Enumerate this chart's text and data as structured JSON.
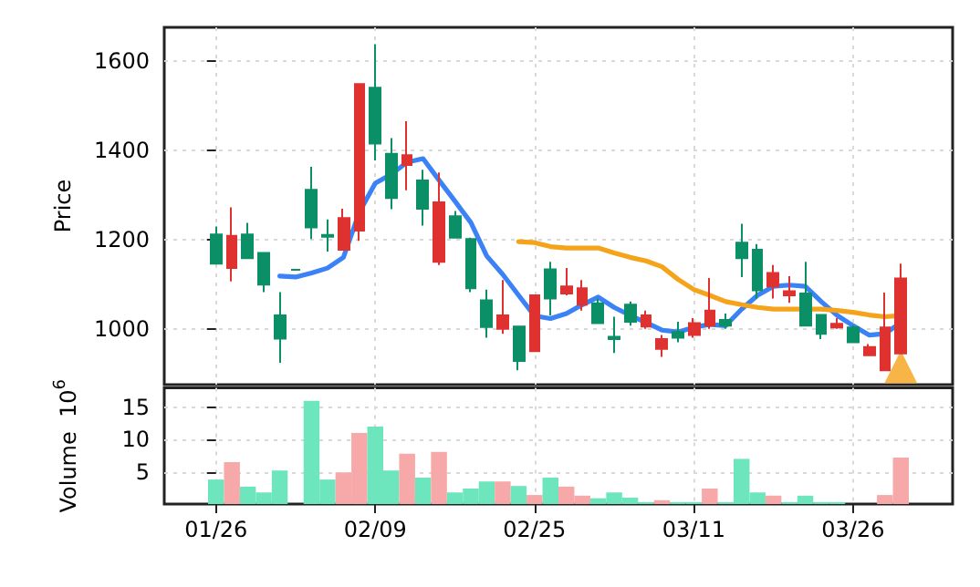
{
  "chart_data": [
    {
      "type": "candlestick",
      "ylabel": "Price",
      "ohlc": [
        [
          1146,
          1229,
          1146,
          1211
        ],
        [
          1208,
          1272,
          1106,
          1136
        ],
        [
          1158,
          1237,
          1158,
          1211
        ],
        [
          1099,
          1170,
          1082,
          1170
        ],
        [
          978,
          1082,
          924,
          1030
        ],
        [
          1132,
          1132,
          1132,
          1132
        ],
        [
          1227,
          1363,
          1201,
          1311
        ],
        [
          1206,
          1245,
          1173,
          1210
        ],
        [
          1248,
          1269,
          1177,
          1177
        ],
        [
          1548,
          1548,
          1197,
          1220
        ],
        [
          1415,
          1637,
          1377,
          1540
        ],
        [
          1293,
          1427,
          1268,
          1392
        ],
        [
          1389,
          1465,
          1310,
          1367
        ],
        [
          1269,
          1356,
          1231,
          1332
        ],
        [
          1283,
          1350,
          1143,
          1150
        ],
        [
          1204,
          1264,
          1204,
          1252
        ],
        [
          1091,
          1204,
          1082,
          1201
        ],
        [
          1004,
          1088,
          980,
          1064
        ],
        [
          1030,
          1109,
          989,
          1000
        ],
        [
          928,
          1007,
          907,
          1005
        ],
        [
          1075,
          1075,
          950,
          950
        ],
        [
          1068,
          1150,
          1030,
          1133
        ],
        [
          1095,
          1136,
          1075,
          1079
        ],
        [
          1091,
          1109,
          1041,
          1054
        ],
        [
          1013,
          1068,
          1013,
          1057
        ],
        [
          977,
          1027,
          946,
          982
        ],
        [
          1016,
          1061,
          1007,
          1054
        ],
        [
          1030,
          1041,
          1000,
          1005
        ],
        [
          977,
          986,
          937,
          955
        ],
        [
          980,
          1016,
          970,
          993
        ],
        [
          1013,
          1024,
          980,
          986
        ],
        [
          1041,
          1114,
          1000,
          1007
        ],
        [
          1007,
          1034,
          1000,
          1020
        ],
        [
          1158,
          1235,
          1116,
          1193
        ],
        [
          1086,
          1190,
          1068,
          1177
        ],
        [
          1125,
          1143,
          1068,
          1095
        ],
        [
          1084,
          1118,
          1058,
          1075
        ],
        [
          1007,
          1150,
          1007,
          1079
        ],
        [
          989,
          1031,
          977,
          1031
        ],
        [
          1011,
          1024,
          1000,
          1003
        ],
        [
          970,
          1007,
          969,
          1003
        ],
        [
          959,
          966,
          939,
          941
        ],
        [
          1003,
          1081,
          907,
          907
        ],
        [
          1113,
          1146,
          945,
          945
        ]
      ],
      "colors": [
        "#0b8f66",
        "#e03131",
        "#0b8f66",
        "#0b8f66",
        "#0b8f66",
        "#0b8f66",
        "#0b8f66",
        "#0b8f66",
        "#e03131",
        "#e03131",
        "#0b8f66",
        "#0b8f66",
        "#e03131",
        "#0b8f66",
        "#e03131",
        "#0b8f66",
        "#0b8f66",
        "#0b8f66",
        "#e03131",
        "#0b8f66",
        "#e03131",
        "#0b8f66",
        "#e03131",
        "#e03131",
        "#0b8f66",
        "#0b8f66",
        "#0b8f66",
        "#e03131",
        "#e03131",
        "#0b8f66",
        "#e03131",
        "#e03131",
        "#0b8f66",
        "#0b8f66",
        "#0b8f66",
        "#e03131",
        "#e03131",
        "#0b8f66",
        "#0b8f66",
        "#e03131",
        "#0b8f66",
        "#e03131",
        "#e03131",
        "#e03131"
      ],
      "series": [
        {
          "type": "line",
          "color": "#3b82f6",
          "values": [
            null,
            null,
            null,
            null,
            1118,
            1116,
            1125,
            1136,
            1160,
            1261,
            1326,
            1346,
            1373,
            1381,
            1333,
            1286,
            1238,
            1163,
            1122,
            1075,
            1029,
            1023,
            1034,
            1054,
            1071,
            1048,
            1030,
            1014,
            997,
            993,
            1003,
            1010,
            1007,
            1044,
            1075,
            1095,
            1098,
            1095,
            1061,
            1030,
            1007,
            986,
            989,
            1014
          ]
        },
        {
          "type": "line",
          "color": "#f5a31a",
          "values": [
            null,
            null,
            null,
            null,
            null,
            null,
            null,
            null,
            null,
            null,
            null,
            null,
            null,
            null,
            null,
            null,
            null,
            null,
            null,
            1195,
            1193,
            1184,
            1181,
            1181,
            1181,
            1170,
            1160,
            1152,
            1139,
            1111,
            1088,
            1075,
            1061,
            1054,
            1048,
            1044,
            1044,
            1044,
            1044,
            1041,
            1037,
            1031,
            1027,
            1030
          ]
        },
        {
          "type": "scatter",
          "marker": "triangle",
          "color": "#f5a31a",
          "values": [
            null,
            null,
            null,
            null,
            null,
            null,
            null,
            null,
            null,
            null,
            null,
            null,
            null,
            null,
            null,
            null,
            null,
            null,
            null,
            null,
            null,
            null,
            null,
            null,
            null,
            null,
            null,
            null,
            null,
            null,
            null,
            null,
            null,
            null,
            null,
            null,
            null,
            null,
            null,
            null,
            null,
            null,
            null,
            915
          ]
        }
      ],
      "ylim": [
        875,
        1675
      ],
      "yticks": [
        1000,
        1200,
        1400,
        1600
      ],
      "grid": true,
      "tick_labels": "y"
    },
    {
      "type": "bar",
      "ylabel": "Volume  10$^{6}$",
      "categories": [
        "01/26",
        null,
        null,
        null,
        null,
        null,
        null,
        null,
        null,
        null,
        "02/09",
        null,
        null,
        null,
        null,
        null,
        null,
        null,
        null,
        null,
        "02/25",
        null,
        null,
        null,
        null,
        null,
        null,
        null,
        null,
        null,
        "03/11",
        null,
        null,
        null,
        null,
        null,
        null,
        null,
        null,
        null,
        "03/26",
        null,
        null,
        null
      ],
      "values": [
        3.8,
        6.5,
        2.7,
        1.8,
        5.2,
        0,
        16,
        3.8,
        4.9,
        11,
        12,
        5.2,
        7.8,
        4.1,
        8.1,
        1.8,
        2.4,
        3.5,
        3.5,
        2.8,
        1.4,
        4.1,
        2.7,
        1.3,
        0.9,
        1.8,
        1.0,
        0.3,
        0.6,
        0.3,
        0.3,
        2.4,
        0.3,
        7.0,
        1.8,
        1.3,
        0.3,
        1.3,
        0.3,
        0.3,
        0,
        0,
        1.4,
        7.2
      ],
      "colors": [
        "#6ee6bd",
        "#f7a8a8",
        "#6ee6bd",
        "#6ee6bd",
        "#6ee6bd",
        "#6ee6bd",
        "#6ee6bd",
        "#6ee6bd",
        "#f7a8a8",
        "#f7a8a8",
        "#6ee6bd",
        "#6ee6bd",
        "#f7a8a8",
        "#6ee6bd",
        "#f7a8a8",
        "#6ee6bd",
        "#6ee6bd",
        "#6ee6bd",
        "#f7a8a8",
        "#6ee6bd",
        "#f7a8a8",
        "#6ee6bd",
        "#f7a8a8",
        "#f7a8a8",
        "#6ee6bd",
        "#6ee6bd",
        "#6ee6bd",
        "#6ee6bd",
        "#f7a8a8",
        "#6ee6bd",
        "#6ee6bd",
        "#f7a8a8",
        "#6ee6bd",
        "#6ee6bd",
        "#6ee6bd",
        "#f7a8a8",
        "#6ee6bd",
        "#6ee6bd",
        "#6ee6bd",
        "#6ee6bd",
        "#6ee6bd",
        "#f7a8a8",
        "#f7a8a8",
        "#f7a8a8"
      ],
      "ylim": [
        0,
        18
      ],
      "yticks": [
        5,
        10,
        15
      ],
      "grid": true
    }
  ]
}
